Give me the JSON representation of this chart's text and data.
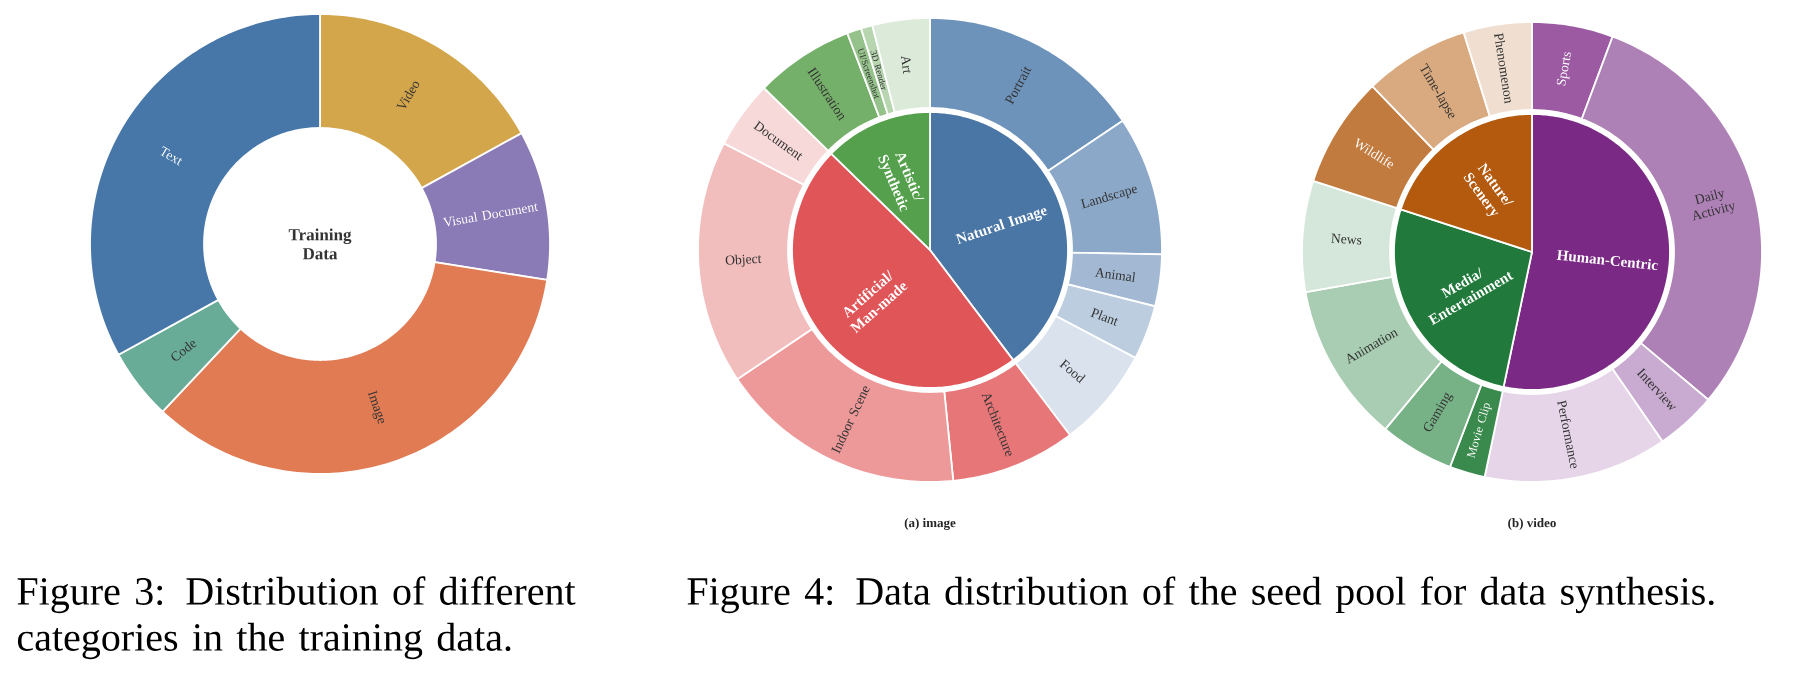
{
  "chart_data": [
    {
      "type": "donut",
      "title": "Training Data",
      "categories": [
        "Video",
        "Visual Document",
        "Image",
        "Code",
        "Text"
      ],
      "values": [
        17,
        10.5,
        34.5,
        5,
        33
      ],
      "colors": [
        "#d4a64c",
        "#8a7ab5",
        "#e07b54",
        "#68ab97",
        "#4677a8"
      ],
      "annotations": [
        "Figure 3: Distribution of different categories in the training data."
      ]
    },
    {
      "type": "pie",
      "title": "(a) image",
      "categories": [
        "Natural Image",
        "Artificial/ Man-made",
        "Artistic/ Synthetic"
      ],
      "values": [
        39.7,
        47.6,
        12.7
      ],
      "colors": [
        "#4a76a5",
        "#e05558",
        "#55a04c"
      ],
      "annotations": [
        "Figure 4: Data distribution of the seed pool for data synthesis."
      ]
    },
    {
      "type": "donut",
      "categories": [
        "Portrait",
        "Landscape",
        "Animal",
        "Plant",
        "Food",
        "Architecture",
        "Indoor Scene",
        "Object",
        "Document",
        "Illustration",
        "UI/Screenshot",
        "3D Render",
        "Art"
      ],
      "values": [
        15.6,
        9.7,
        3.6,
        3.8,
        7.0,
        8.7,
        17.2,
        17.0,
        4.7,
        6.9,
        1.0,
        0.8,
        4.0
      ],
      "colors": [
        "#6e93bb",
        "#8ba8c8",
        "#a3b9d3",
        "#bccde0",
        "#d9e2ed",
        "#e77678",
        "#ed9999",
        "#f2bdbd",
        "#f7d9d9",
        "#75b06a",
        "#95c28b",
        "#b7d6b0",
        "#dcebd9"
      ]
    },
    {
      "type": "pie",
      "title": "(b) video",
      "categories": [
        "Human-Centric",
        "Media/ Entertainment",
        "Nature/ Scenery"
      ],
      "values": [
        53.3,
        26.7,
        20.0
      ],
      "colors": [
        "#7a2a84",
        "#217a3b",
        "#b35a0e"
      ]
    },
    {
      "type": "donut",
      "categories": [
        "Sports",
        "Daily Activity",
        "Interview",
        "Performance",
        "Movie Clip",
        "Gaming",
        "Animation",
        "News",
        "Wildlife",
        "Time-lapse",
        "Phenomenon"
      ],
      "values": [
        5.7,
        30.4,
        4.3,
        12.9,
        2.5,
        5.2,
        11.2,
        7.8,
        7.8,
        7.4,
        4.8
      ],
      "colors": [
        "#9c5aa3",
        "#ad80b6",
        "#c9aad0",
        "#e6d5e8",
        "#3a8a4d",
        "#77b186",
        "#a8cdb2",
        "#d5e6da",
        "#c27b3e",
        "#d9aa7f",
        "#f0dfd0"
      ]
    }
  ]
}
